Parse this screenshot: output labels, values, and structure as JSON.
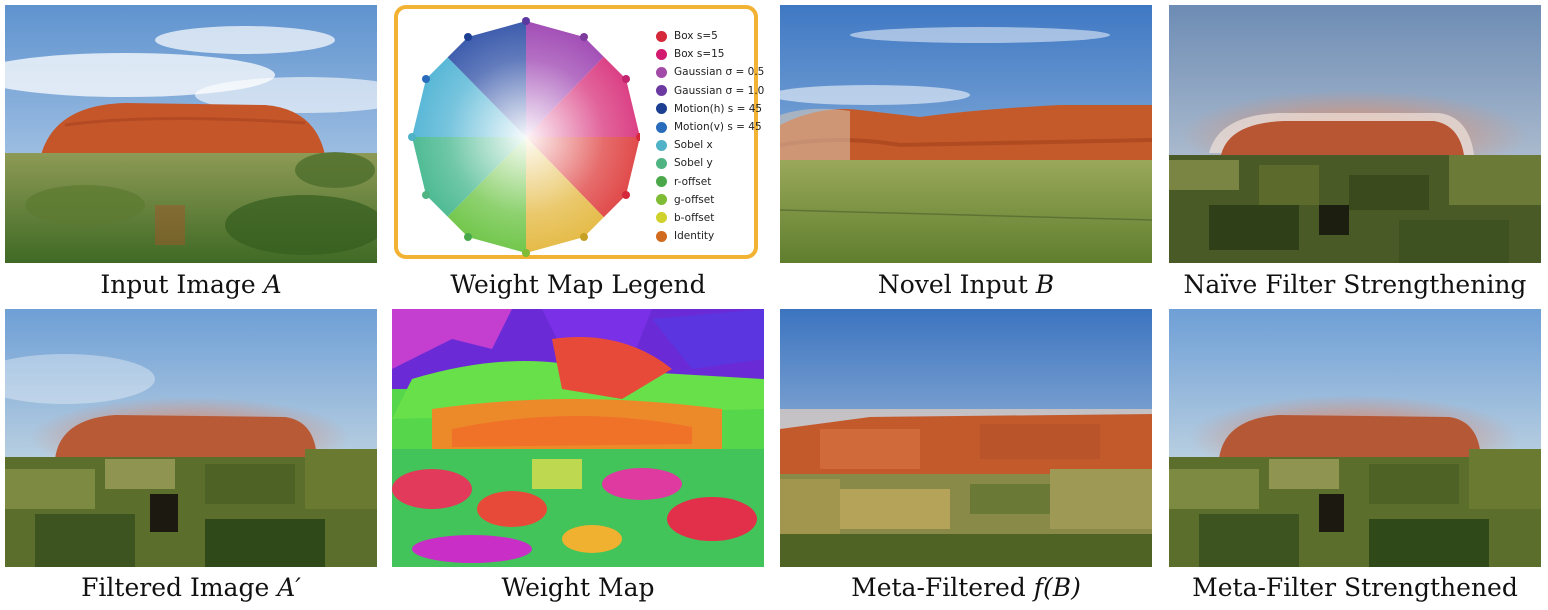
{
  "panels": {
    "input_a": {
      "caption_text": "Input Image ",
      "caption_var": "A"
    },
    "legend": {
      "caption_text": "Weight Map Legend"
    },
    "novel_b": {
      "caption_text": "Novel Input ",
      "caption_var": "B"
    },
    "naive": {
      "caption_text": "Naïve Filter Strengthening"
    },
    "filtered_a": {
      "caption_text": "Filtered Image ",
      "caption_var": "A′"
    },
    "weight_map": {
      "caption_text": "Weight Map"
    },
    "meta_filtered": {
      "caption_text": "Meta-Filtered ",
      "caption_var": "f(B)"
    },
    "meta_strength": {
      "caption_text": "Meta-Filter Strengthened"
    }
  },
  "legend_items": [
    {
      "label": "Box s=5",
      "color": "#d5283a"
    },
    {
      "label": "Box s=15",
      "color": "#d21b6e"
    },
    {
      "label": "Gaussian σ = 0.5",
      "color": "#a24aa8"
    },
    {
      "label": "Gaussian σ = 1.0",
      "color": "#6a3aa0"
    },
    {
      "label": "Motion(h) s = 45",
      "color": "#1d3f91"
    },
    {
      "label": "Motion(v) s = 45",
      "color": "#2a6cbc"
    },
    {
      "label": "Sobel x",
      "color": "#4fb2c7"
    },
    {
      "label": "Sobel y",
      "color": "#4fb482"
    },
    {
      "label": "r-offset",
      "color": "#4aa84a"
    },
    {
      "label": "g-offset",
      "color": "#7fbb35"
    },
    {
      "label": "b-offset",
      "color": "#cfd22b"
    },
    {
      "label": "Identity",
      "color": "#d06a1e"
    }
  ],
  "colors": {
    "legend_border": "#f2b233",
    "rock": "#c8552b",
    "sky": "#6d9fd2"
  }
}
